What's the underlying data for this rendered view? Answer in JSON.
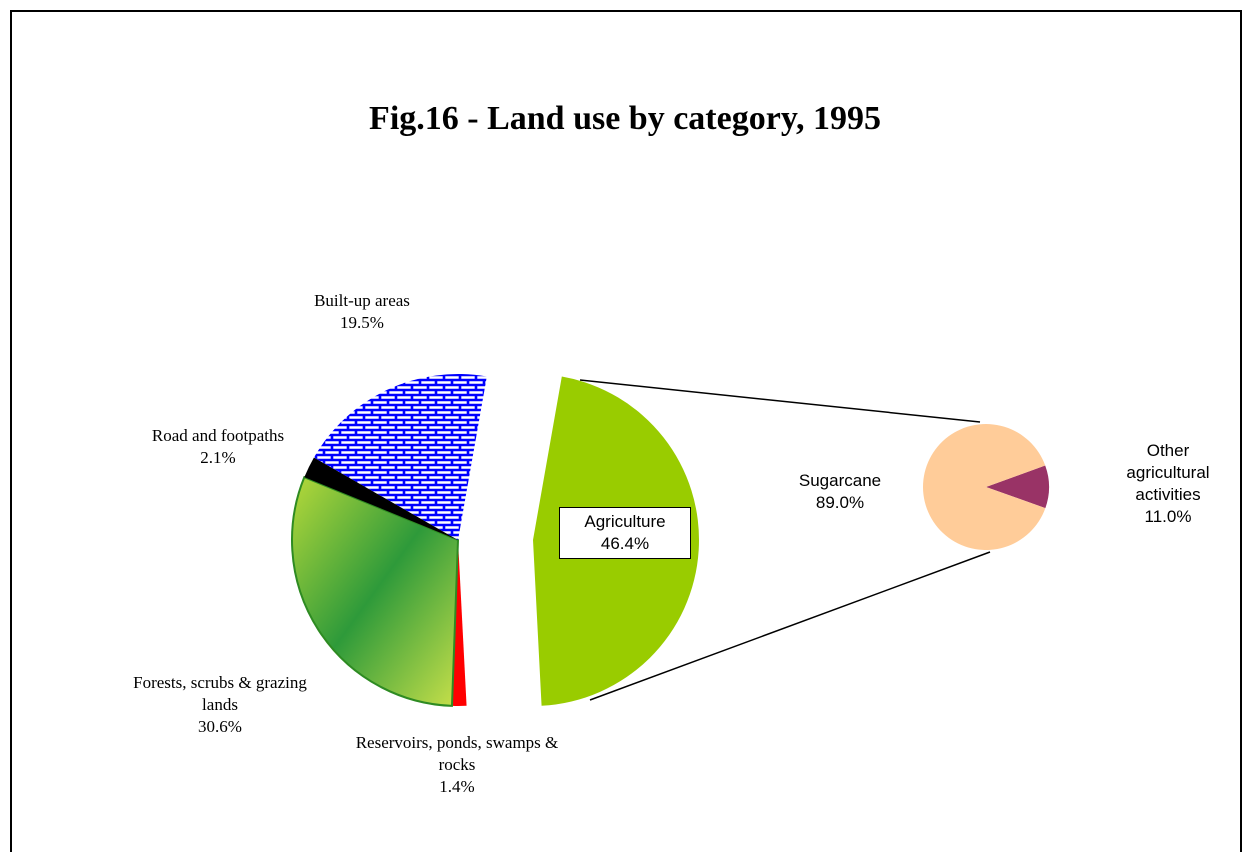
{
  "chart_data": {
    "type": "pie",
    "title": "Fig.16 - Land use by category, 1995",
    "categories": [
      "Agriculture",
      "Reservoirs, ponds, swamps & rocks",
      "Forests, scrubs & grazing lands",
      "Road and footpaths",
      "Built-up areas"
    ],
    "values": [
      46.4,
      1.4,
      30.6,
      2.1,
      19.5
    ],
    "value_labels": [
      "46.4%",
      "1.4%",
      "30.6%",
      "2.1%",
      "19.5%"
    ],
    "colors": [
      "#99cc00",
      "#ff0000",
      "#5fae2e",
      "#000000",
      "#0000ff"
    ],
    "secondary": {
      "type": "pie",
      "categories": [
        "Other agricultural activities",
        "Sugarcane"
      ],
      "values": [
        11.0,
        89.0
      ],
      "value_labels": [
        "11.0%",
        "89.0%"
      ],
      "colors": [
        "#993366",
        "#ffcc99"
      ]
    }
  }
}
